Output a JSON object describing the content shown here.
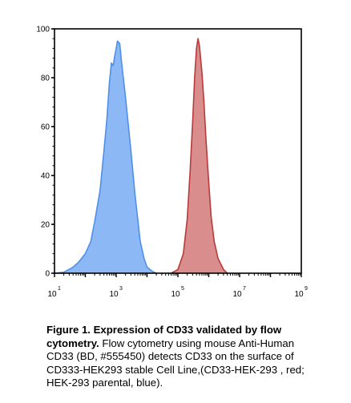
{
  "chart_data": {
    "type": "area",
    "x_scale": "log",
    "xlim": [
      10,
      1000000000
    ],
    "ylim": [
      0,
      100
    ],
    "x_ticks": [
      {
        "value": 10,
        "base": "10",
        "exp": "1"
      },
      {
        "value": 1000,
        "base": "10",
        "exp": "3"
      },
      {
        "value": 100000,
        "base": "10",
        "exp": "5"
      },
      {
        "value": 10000000,
        "base": "10",
        "exp": "7"
      },
      {
        "value": 1000000000,
        "base": "10",
        "exp": "9"
      }
    ],
    "y_ticks": [
      "0",
      "20",
      "40",
      "60",
      "80",
      "100"
    ],
    "series": [
      {
        "color": "#4f8fe8",
        "fill": "#8cb8f6",
        "points": [
          [
            10,
            0
          ],
          [
            20,
            0.4
          ],
          [
            40,
            2.5
          ],
          [
            60,
            4.5
          ],
          [
            100,
            8
          ],
          [
            150,
            13
          ],
          [
            200,
            21
          ],
          [
            300,
            34
          ],
          [
            400,
            50
          ],
          [
            500,
            63
          ],
          [
            600,
            78
          ],
          [
            700,
            86
          ],
          [
            800,
            85
          ],
          [
            900,
            89
          ],
          [
            1000,
            92
          ],
          [
            1100,
            95
          ],
          [
            1300,
            94
          ],
          [
            1500,
            86
          ],
          [
            2000,
            72
          ],
          [
            3000,
            50
          ],
          [
            4000,
            33
          ],
          [
            5000,
            22
          ],
          [
            6000,
            13
          ],
          [
            8000,
            6
          ],
          [
            10000,
            2.5
          ],
          [
            15000,
            0.7
          ],
          [
            20000,
            0
          ]
        ]
      },
      {
        "color": "#b83a3a",
        "fill": "#d98d8d",
        "points": [
          [
            60000,
            0
          ],
          [
            100000,
            1.5
          ],
          [
            150000,
            8
          ],
          [
            200000,
            22
          ],
          [
            250000,
            42
          ],
          [
            300000,
            62
          ],
          [
            350000,
            80
          ],
          [
            400000,
            92
          ],
          [
            450000,
            96
          ],
          [
            500000,
            93
          ],
          [
            600000,
            82
          ],
          [
            700000,
            70
          ],
          [
            800000,
            56
          ],
          [
            1000000,
            37
          ],
          [
            1200000,
            23
          ],
          [
            1500000,
            13
          ],
          [
            2000000,
            6
          ],
          [
            3000000,
            1.5
          ],
          [
            4000000,
            0
          ]
        ]
      }
    ]
  },
  "caption": {
    "bold": "Figure 1. Expression of CD33 validated by flow cytometry.",
    "text": " Flow cytometry using mouse Anti-Human CD33 (BD, #555450) detects CD33 on the surface of CD333-HEK293 stable Cell Line,(CD33-HEK-293 , red; HEK-293 parental, blue)."
  }
}
